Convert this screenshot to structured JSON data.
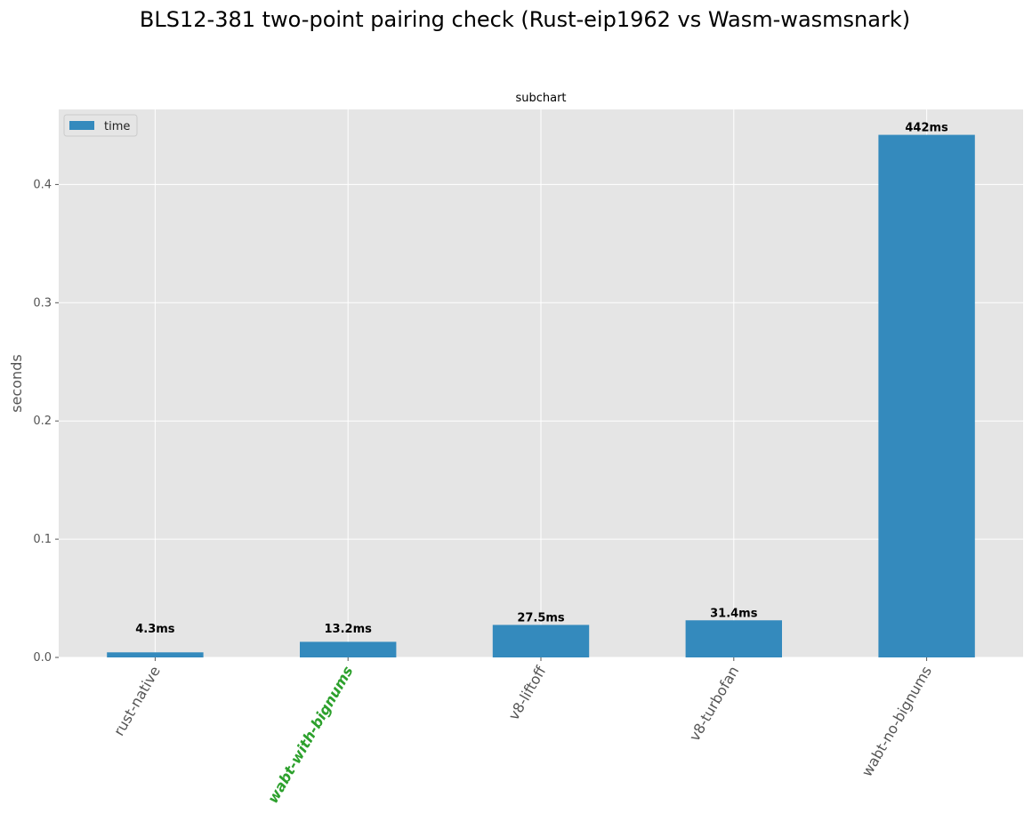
{
  "chart_data": {
    "type": "bar",
    "title": "BLS12-381 two-point pairing check (Rust-eip1962 vs Wasm-wasmsnark)",
    "subtitle": "subchart",
    "ylabel": "seconds",
    "ylim": [
      0,
      0.4635
    ],
    "yticks": [
      "0.0",
      "0.1",
      "0.2",
      "0.3",
      "0.4"
    ],
    "categories": [
      "rust-native",
      "wabt-with-bignums",
      "v8-liftoff",
      "v8-turbofan",
      "wabt-no-bignums"
    ],
    "highlighted_category": "wabt-with-bignums",
    "series": [
      {
        "name": "time",
        "values": [
          0.0043,
          0.0132,
          0.0275,
          0.0314,
          0.442
        ],
        "labels": [
          "4.3ms",
          "13.2ms",
          "27.5ms",
          "31.4ms",
          "442ms"
        ]
      }
    ],
    "legend": "top-left",
    "grid": true,
    "colors": {
      "bar": "#348ABD",
      "plot_bg": "#E5E5E5",
      "grid": "#FFFFFF",
      "highlight_label": "#2CA02C"
    }
  }
}
